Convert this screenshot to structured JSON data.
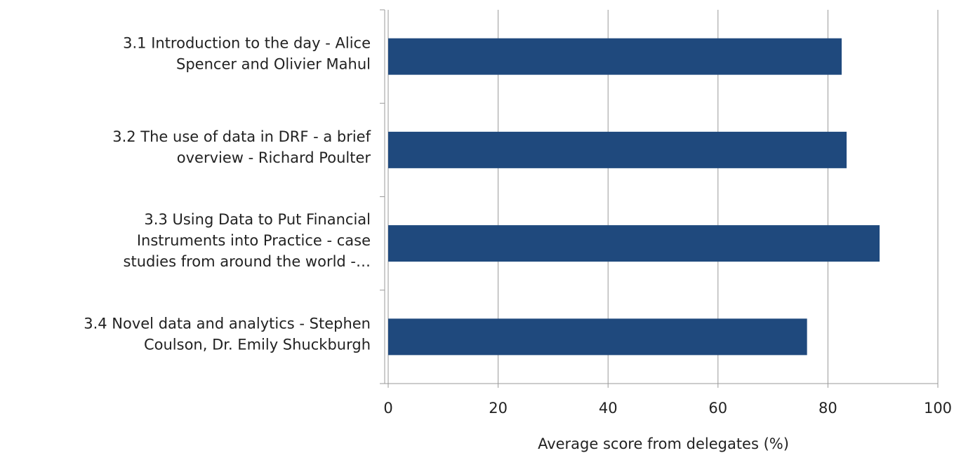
{
  "chart_data": {
    "type": "bar",
    "orientation": "horizontal",
    "categories": [
      [
        "3.1 Introduction to the day - Alice",
        "Spencer and Olivier Mahul"
      ],
      [
        "3.2 The use of data in DRF - a brief",
        "overview - Richard Poulter"
      ],
      [
        "3.3 Using Data to Put Financial",
        "Instruments into Practice - case",
        "studies from around the world -…"
      ],
      [
        "3.4 Novel data and analytics - Stephen",
        "Coulson, Dr. Emily Shuckburgh"
      ]
    ],
    "values": [
      82.5,
      83.4,
      89.4,
      76.2
    ],
    "color": "#1f497d",
    "xlabel": "Average score from delegates (%)",
    "xlim": [
      0,
      100
    ],
    "xticks": [
      0,
      20,
      40,
      60,
      80,
      100
    ],
    "grid": true
  }
}
